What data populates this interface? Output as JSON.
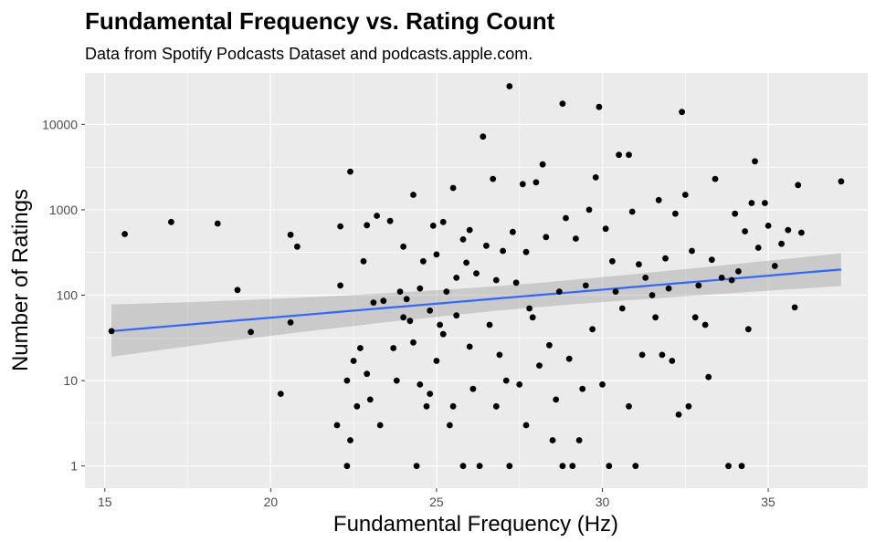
{
  "chart_data": {
    "type": "scatter",
    "title": "Fundamental Frequency vs. Rating Count",
    "subtitle": "Data from Spotify Podcasts Dataset and podcasts.apple.com.",
    "xlabel": "Fundamental Frequency (Hz)",
    "ylabel": "Number of Ratings",
    "xlim": [
      14.4,
      38.0
    ],
    "ylim": [
      0.55,
      40000
    ],
    "y_scale": "log10",
    "x_ticks": [
      15,
      20,
      25,
      30,
      35
    ],
    "y_ticks": [
      1,
      10,
      100,
      1000,
      10000
    ],
    "x_tick_labels": [
      "15",
      "20",
      "25",
      "30",
      "35"
    ],
    "y_tick_labels": [
      "1",
      "10",
      "100",
      "1000",
      "10000"
    ],
    "grid": true,
    "points": [
      {
        "x": 15.2,
        "y": 38
      },
      {
        "x": 15.6,
        "y": 520
      },
      {
        "x": 17.0,
        "y": 720
      },
      {
        "x": 18.4,
        "y": 690
      },
      {
        "x": 19.0,
        "y": 115
      },
      {
        "x": 19.4,
        "y": 37
      },
      {
        "x": 20.3,
        "y": 7
      },
      {
        "x": 20.6,
        "y": 510
      },
      {
        "x": 20.6,
        "y": 48
      },
      {
        "x": 20.8,
        "y": 370
      },
      {
        "x": 22.0,
        "y": 3
      },
      {
        "x": 22.1,
        "y": 640
      },
      {
        "x": 22.1,
        "y": 130
      },
      {
        "x": 22.3,
        "y": 1
      },
      {
        "x": 22.3,
        "y": 10
      },
      {
        "x": 22.4,
        "y": 2800
      },
      {
        "x": 22.4,
        "y": 2
      },
      {
        "x": 22.5,
        "y": 17
      },
      {
        "x": 22.6,
        "y": 5
      },
      {
        "x": 22.7,
        "y": 24
      },
      {
        "x": 22.8,
        "y": 250
      },
      {
        "x": 22.9,
        "y": 660
      },
      {
        "x": 22.9,
        "y": 12
      },
      {
        "x": 23.0,
        "y": 6
      },
      {
        "x": 23.1,
        "y": 82
      },
      {
        "x": 23.2,
        "y": 850
      },
      {
        "x": 23.3,
        "y": 3
      },
      {
        "x": 23.4,
        "y": 86
      },
      {
        "x": 23.6,
        "y": 740
      },
      {
        "x": 23.7,
        "y": 24
      },
      {
        "x": 23.8,
        "y": 10
      },
      {
        "x": 23.9,
        "y": 110
      },
      {
        "x": 24.0,
        "y": 55
      },
      {
        "x": 24.0,
        "y": 370
      },
      {
        "x": 24.1,
        "y": 90
      },
      {
        "x": 24.2,
        "y": 50
      },
      {
        "x": 24.3,
        "y": 1500
      },
      {
        "x": 24.3,
        "y": 28
      },
      {
        "x": 24.4,
        "y": 1
      },
      {
        "x": 24.5,
        "y": 9
      },
      {
        "x": 24.5,
        "y": 120
      },
      {
        "x": 24.6,
        "y": 250
      },
      {
        "x": 24.7,
        "y": 5
      },
      {
        "x": 24.8,
        "y": 7
      },
      {
        "x": 24.8,
        "y": 66
      },
      {
        "x": 24.9,
        "y": 650
      },
      {
        "x": 25.0,
        "y": 17
      },
      {
        "x": 25.0,
        "y": 300
      },
      {
        "x": 25.1,
        "y": 45
      },
      {
        "x": 25.2,
        "y": 720
      },
      {
        "x": 25.2,
        "y": 35
      },
      {
        "x": 25.3,
        "y": 110
      },
      {
        "x": 25.4,
        "y": 3
      },
      {
        "x": 25.5,
        "y": 1800
      },
      {
        "x": 25.5,
        "y": 5
      },
      {
        "x": 25.6,
        "y": 58
      },
      {
        "x": 25.6,
        "y": 160
      },
      {
        "x": 25.8,
        "y": 1
      },
      {
        "x": 25.8,
        "y": 450
      },
      {
        "x": 25.9,
        "y": 240
      },
      {
        "x": 26.0,
        "y": 580
      },
      {
        "x": 26.0,
        "y": 25
      },
      {
        "x": 26.1,
        "y": 8
      },
      {
        "x": 26.2,
        "y": 180
      },
      {
        "x": 26.3,
        "y": 1
      },
      {
        "x": 26.4,
        "y": 7200
      },
      {
        "x": 26.5,
        "y": 380
      },
      {
        "x": 26.6,
        "y": 45
      },
      {
        "x": 26.7,
        "y": 2300
      },
      {
        "x": 26.8,
        "y": 5
      },
      {
        "x": 26.8,
        "y": 150
      },
      {
        "x": 26.9,
        "y": 20
      },
      {
        "x": 27.0,
        "y": 330
      },
      {
        "x": 27.1,
        "y": 10
      },
      {
        "x": 27.2,
        "y": 28000
      },
      {
        "x": 27.2,
        "y": 1
      },
      {
        "x": 27.3,
        "y": 550
      },
      {
        "x": 27.4,
        "y": 140
      },
      {
        "x": 27.5,
        "y": 9
      },
      {
        "x": 27.6,
        "y": 2000
      },
      {
        "x": 27.7,
        "y": 320
      },
      {
        "x": 27.7,
        "y": 3
      },
      {
        "x": 27.8,
        "y": 70
      },
      {
        "x": 27.9,
        "y": 55
      },
      {
        "x": 28.0,
        "y": 2100
      },
      {
        "x": 28.1,
        "y": 15
      },
      {
        "x": 28.2,
        "y": 3400
      },
      {
        "x": 28.3,
        "y": 480
      },
      {
        "x": 28.4,
        "y": 26
      },
      {
        "x": 28.5,
        "y": 2
      },
      {
        "x": 28.6,
        "y": 6
      },
      {
        "x": 28.7,
        "y": 110
      },
      {
        "x": 28.8,
        "y": 17500
      },
      {
        "x": 28.8,
        "y": 1
      },
      {
        "x": 28.9,
        "y": 800
      },
      {
        "x": 29.0,
        "y": 18
      },
      {
        "x": 29.1,
        "y": 1
      },
      {
        "x": 29.2,
        "y": 460
      },
      {
        "x": 29.3,
        "y": 2
      },
      {
        "x": 29.4,
        "y": 8
      },
      {
        "x": 29.5,
        "y": 130
      },
      {
        "x": 29.6,
        "y": 1000
      },
      {
        "x": 29.7,
        "y": 40
      },
      {
        "x": 29.8,
        "y": 2400
      },
      {
        "x": 29.9,
        "y": 16000
      },
      {
        "x": 30.0,
        "y": 9
      },
      {
        "x": 30.1,
        "y": 600
      },
      {
        "x": 30.2,
        "y": 1
      },
      {
        "x": 30.3,
        "y": 250
      },
      {
        "x": 30.4,
        "y": 110
      },
      {
        "x": 30.5,
        "y": 4400
      },
      {
        "x": 30.6,
        "y": 70
      },
      {
        "x": 30.8,
        "y": 4400
      },
      {
        "x": 30.8,
        "y": 5
      },
      {
        "x": 30.9,
        "y": 950
      },
      {
        "x": 31.0,
        "y": 1
      },
      {
        "x": 31.1,
        "y": 230
      },
      {
        "x": 31.2,
        "y": 20
      },
      {
        "x": 31.3,
        "y": 160
      },
      {
        "x": 31.5,
        "y": 100
      },
      {
        "x": 31.6,
        "y": 55
      },
      {
        "x": 31.7,
        "y": 1300
      },
      {
        "x": 31.8,
        "y": 20
      },
      {
        "x": 31.9,
        "y": 270
      },
      {
        "x": 32.0,
        "y": 120
      },
      {
        "x": 32.1,
        "y": 17
      },
      {
        "x": 32.2,
        "y": 900
      },
      {
        "x": 32.3,
        "y": 4
      },
      {
        "x": 32.4,
        "y": 14000
      },
      {
        "x": 32.5,
        "y": 1500
      },
      {
        "x": 32.6,
        "y": 5
      },
      {
        "x": 32.7,
        "y": 330
      },
      {
        "x": 32.8,
        "y": 55
      },
      {
        "x": 32.9,
        "y": 130
      },
      {
        "x": 33.1,
        "y": 45
      },
      {
        "x": 33.2,
        "y": 11
      },
      {
        "x": 33.3,
        "y": 260
      },
      {
        "x": 33.4,
        "y": 2300
      },
      {
        "x": 33.6,
        "y": 160
      },
      {
        "x": 33.8,
        "y": 1
      },
      {
        "x": 33.9,
        "y": 150
      },
      {
        "x": 34.0,
        "y": 900
      },
      {
        "x": 34.1,
        "y": 190
      },
      {
        "x": 34.2,
        "y": 1
      },
      {
        "x": 34.3,
        "y": 560
      },
      {
        "x": 34.4,
        "y": 40
      },
      {
        "x": 34.5,
        "y": 1200
      },
      {
        "x": 34.6,
        "y": 3700
      },
      {
        "x": 34.7,
        "y": 360
      },
      {
        "x": 34.9,
        "y": 1200
      },
      {
        "x": 35.0,
        "y": 650
      },
      {
        "x": 35.2,
        "y": 220
      },
      {
        "x": 35.4,
        "y": 400
      },
      {
        "x": 35.6,
        "y": 580
      },
      {
        "x": 35.8,
        "y": 72
      },
      {
        "x": 35.9,
        "y": 1950
      },
      {
        "x": 36.0,
        "y": 540
      },
      {
        "x": 37.2,
        "y": 2150
      }
    ],
    "trend": {
      "type": "lm",
      "color": "#3366ff",
      "x": [
        15.2,
        37.2
      ],
      "y": [
        38,
        200
      ],
      "ci_lower": [
        19,
        120
      ],
      "ci_upper": [
        78,
        330
      ]
    },
    "colors": {
      "panel_bg": "#ebebeb",
      "grid_major": "#ffffff",
      "point": "#000000",
      "ribbon": "#999999"
    }
  }
}
